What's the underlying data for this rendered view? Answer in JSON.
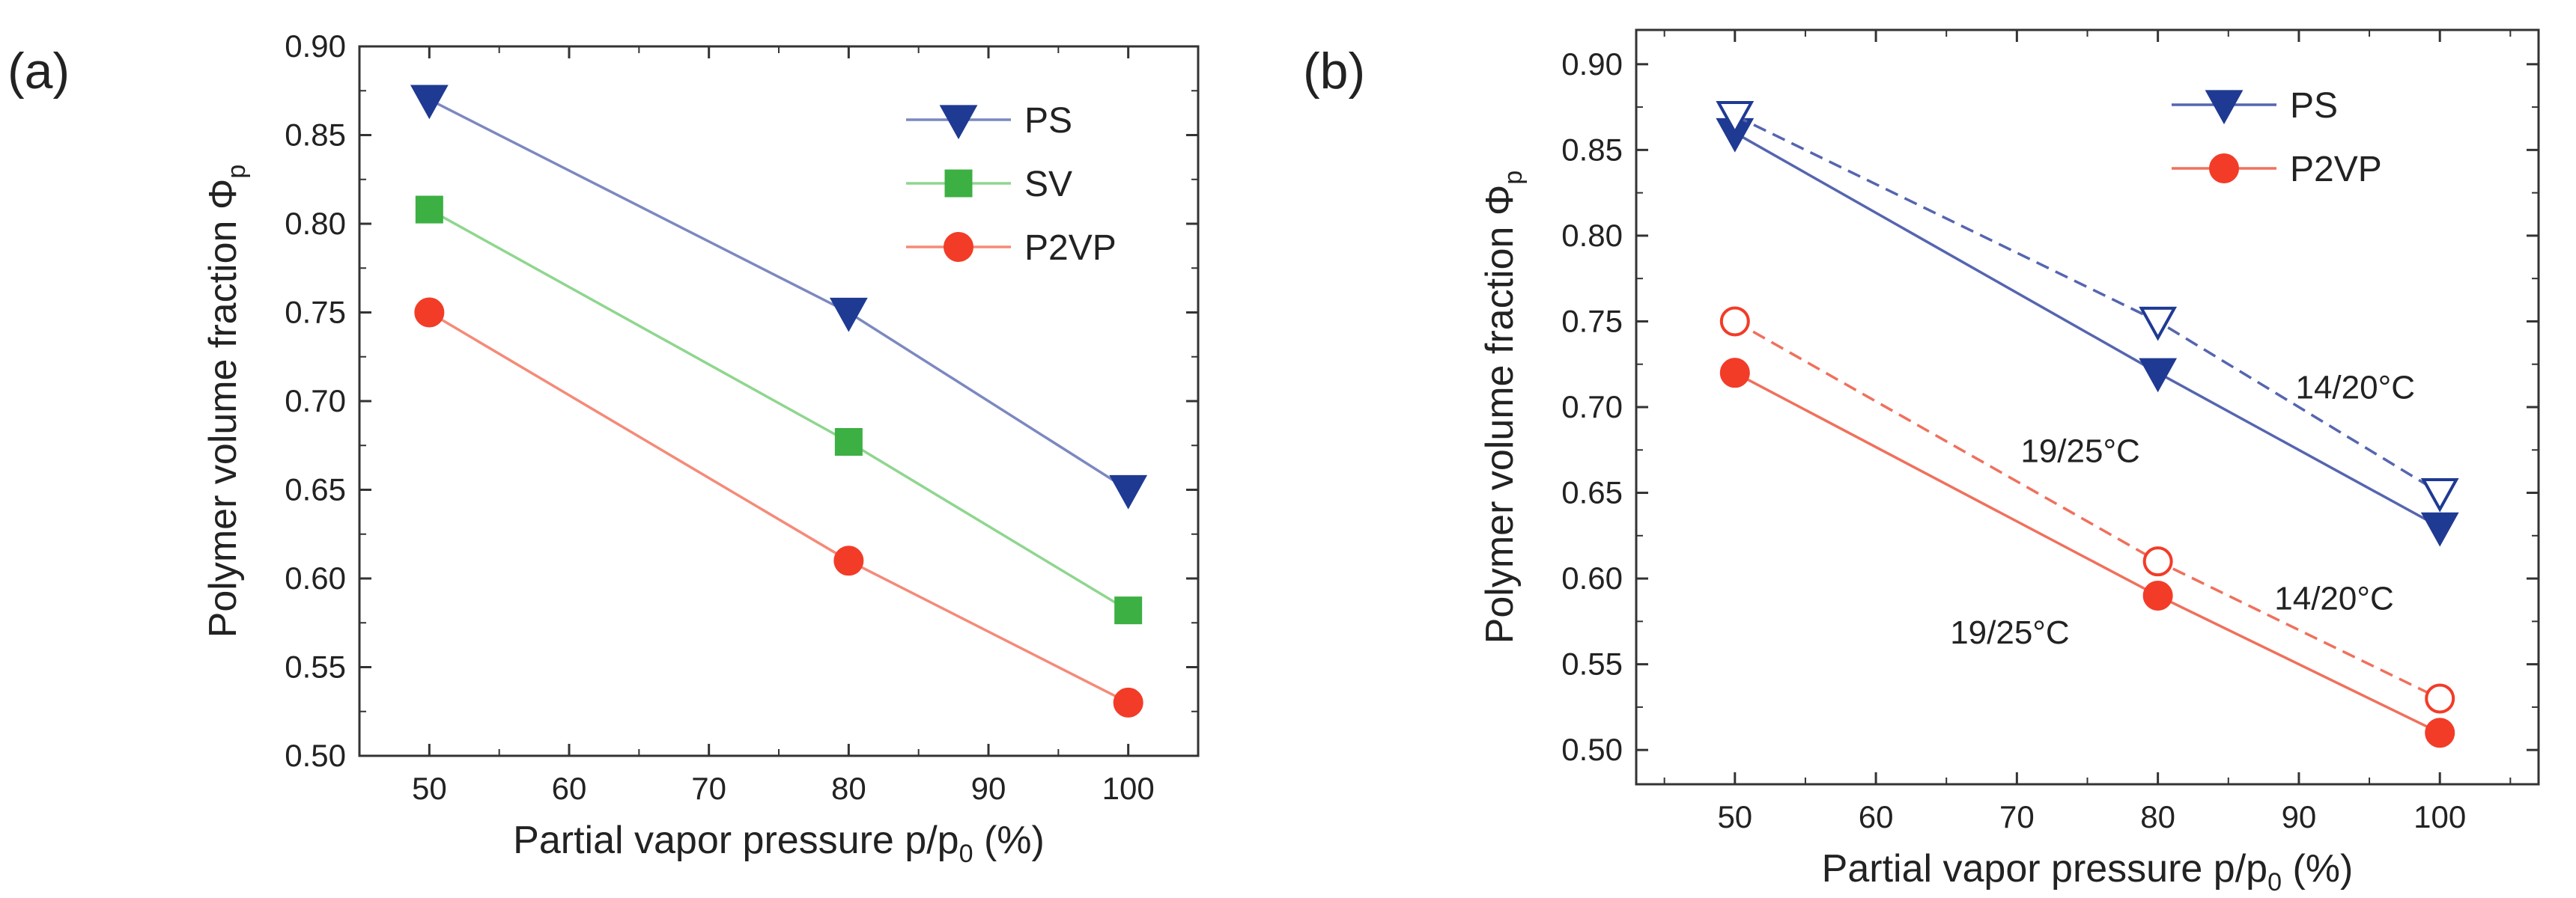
{
  "chart_data": [
    {
      "type": "line",
      "panel_label": "(a)",
      "xlabel": "Partial vapor pressure p/p",
      "xlabel_sub": "0",
      "xlabel_suffix": " (%)",
      "ylabel": "Polymer volume fraction Φ",
      "ylabel_sub": "p",
      "xlim": [
        45,
        105
      ],
      "ylim": [
        0.5,
        0.9
      ],
      "xticks": [
        50,
        60,
        70,
        80,
        90,
        100
      ],
      "yticks": [
        0.5,
        0.55,
        0.6,
        0.65,
        0.7,
        0.75,
        0.8,
        0.85,
        0.9
      ],
      "ytick_labels": [
        "0.50",
        "0.55",
        "0.60",
        "0.65",
        "0.70",
        "0.75",
        "0.80",
        "0.85",
        "0.90"
      ],
      "legend_position": "top-right",
      "series": [
        {
          "name": "PS",
          "x": [
            50,
            80,
            100
          ],
          "values": [
            0.87,
            0.75,
            0.65
          ],
          "color": "#1f3a93",
          "line_color": "#7c88c0",
          "marker": "triangle-down",
          "filled": true,
          "dashed": false,
          "legend": true
        },
        {
          "name": "SV",
          "x": [
            50,
            80,
            100
          ],
          "values": [
            0.808,
            0.677,
            0.582
          ],
          "color": "#3cb043",
          "line_color": "#8fd68f",
          "marker": "square",
          "filled": true,
          "dashed": false,
          "legend": true
        },
        {
          "name": "P2VP",
          "x": [
            50,
            80,
            100
          ],
          "values": [
            0.75,
            0.61,
            0.53
          ],
          "color": "#f23c28",
          "line_color": "#f58a78",
          "marker": "circle",
          "filled": true,
          "dashed": false,
          "legend": true
        }
      ],
      "annotations": []
    },
    {
      "type": "line",
      "panel_label": "(b)",
      "xlabel": "Partial vapor pressure p/p",
      "xlabel_sub": "0",
      "xlabel_suffix": " (%)",
      "ylabel": "Polymer volume fraction Φ",
      "ylabel_sub": "p",
      "xlim": [
        43,
        107
      ],
      "ylim": [
        0.48,
        0.92
      ],
      "xticks": [
        50,
        60,
        70,
        80,
        90,
        100
      ],
      "yticks": [
        0.5,
        0.55,
        0.6,
        0.65,
        0.7,
        0.75,
        0.8,
        0.85,
        0.9
      ],
      "ytick_labels": [
        "0.50",
        "0.55",
        "0.60",
        "0.65",
        "0.70",
        "0.75",
        "0.80",
        "0.85",
        "0.90"
      ],
      "legend_position": "top-right",
      "series": [
        {
          "name": "PS",
          "x": [
            50,
            80,
            100
          ],
          "values": [
            0.86,
            0.72,
            0.63
          ],
          "color": "#1f3a93",
          "line_color": "#5565b0",
          "marker": "triangle-down",
          "filled": true,
          "dashed": false,
          "legend": true
        },
        {
          "name": "PS (14/20°C)",
          "x": [
            50,
            80,
            100
          ],
          "values": [
            0.87,
            0.75,
            0.65
          ],
          "color": "#1f3a93",
          "line_color": "#5565b0",
          "marker": "triangle-down",
          "filled": false,
          "dashed": true,
          "legend": false
        },
        {
          "name": "P2VP",
          "x": [
            50,
            80,
            100
          ],
          "values": [
            0.72,
            0.59,
            0.51
          ],
          "color": "#f23c28",
          "line_color": "#f0705c",
          "marker": "circle",
          "filled": true,
          "dashed": false,
          "legend": true
        },
        {
          "name": "P2VP (14/20°C)",
          "x": [
            50,
            80,
            100
          ],
          "values": [
            0.75,
            0.61,
            0.53
          ],
          "color": "#f23c28",
          "line_color": "#f0705c",
          "marker": "circle",
          "filled": false,
          "dashed": true,
          "legend": false
        }
      ],
      "annotations": [
        {
          "text": "14/20°C",
          "x": 94,
          "y": 0.705
        },
        {
          "text": "19/25°C",
          "x": 74.5,
          "y": 0.668
        },
        {
          "text": "14/20°C",
          "x": 92.5,
          "y": 0.582
        },
        {
          "text": "19/25°C",
          "x": 69.5,
          "y": 0.562
        }
      ]
    }
  ]
}
